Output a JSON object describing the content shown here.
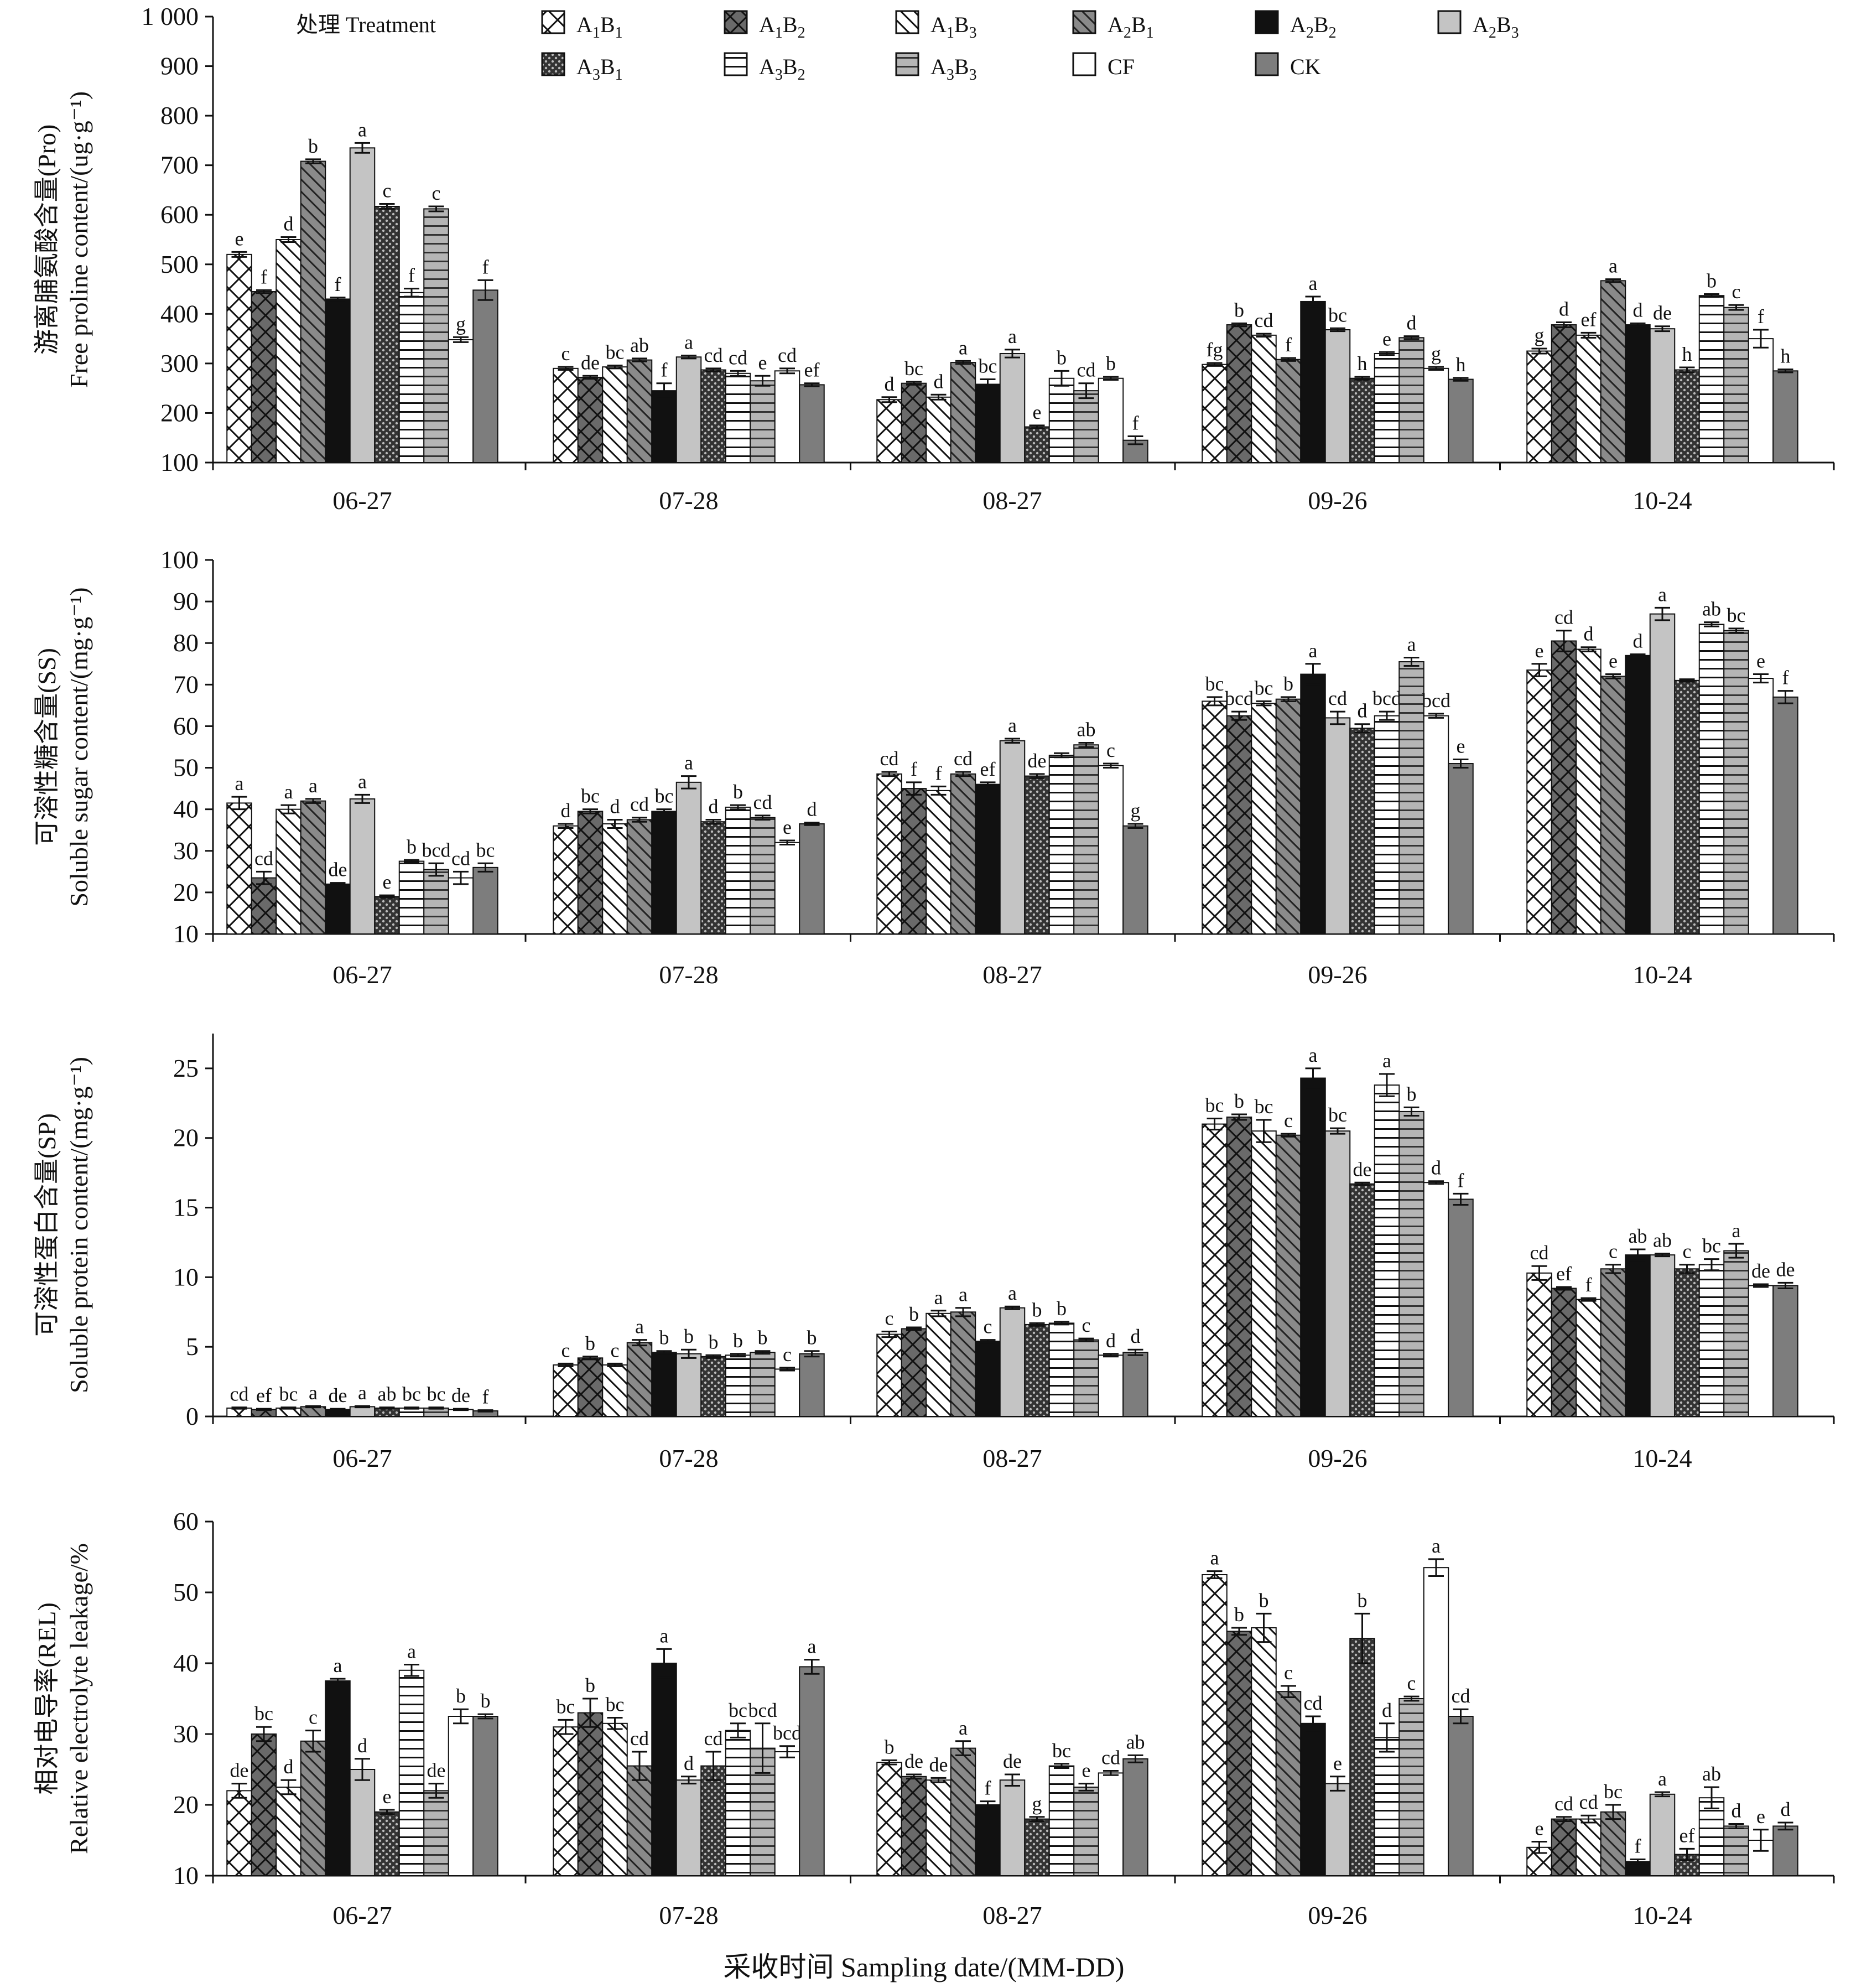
{
  "legend": {
    "title": "处理 Treatment",
    "items": [
      {
        "code": "A1B1",
        "base": "A",
        "sub1": "1",
        "mid": "B",
        "sub2": "1",
        "pattern": "crosshatch"
      },
      {
        "code": "A1B2",
        "base": "A",
        "sub1": "1",
        "mid": "B",
        "sub2": "2",
        "pattern": "dark-cross"
      },
      {
        "code": "A1B3",
        "base": "A",
        "sub1": "1",
        "mid": "B",
        "sub2": "3",
        "pattern": "diag-white"
      },
      {
        "code": "A2B1",
        "base": "A",
        "sub1": "2",
        "mid": "B",
        "sub2": "1",
        "pattern": "diag-gray"
      },
      {
        "code": "A2B2",
        "base": "A",
        "sub1": "2",
        "mid": "B",
        "sub2": "2",
        "pattern": "black"
      },
      {
        "code": "A2B3",
        "base": "A",
        "sub1": "2",
        "mid": "B",
        "sub2": "3",
        "pattern": "lightgray"
      },
      {
        "code": "A3B1",
        "base": "A",
        "sub1": "3",
        "mid": "B",
        "sub2": "1",
        "pattern": "dots"
      },
      {
        "code": "A3B2",
        "base": "A",
        "sub1": "3",
        "mid": "B",
        "sub2": "2",
        "pattern": "hlines-white"
      },
      {
        "code": "A3B3",
        "base": "A",
        "sub1": "3",
        "mid": "B",
        "sub2": "3",
        "pattern": "hlines-gray"
      },
      {
        "code": "CF",
        "base": "CF",
        "sub1": "",
        "mid": "",
        "sub2": "",
        "pattern": "white"
      },
      {
        "code": "CK",
        "base": "CK",
        "sub1": "",
        "mid": "",
        "sub2": "",
        "pattern": "darkgray"
      }
    ]
  },
  "xlabel": "采收时间 Sampling date/(MM-DD)",
  "chart_data": [
    {
      "type": "bar",
      "ylabel_cn": "游离脯氨酸含量(Pro)",
      "ylabel_en": "Free proline content/(ug·g⁻¹)",
      "categories": [
        "06-27",
        "07-28",
        "08-27",
        "09-26",
        "10-24"
      ],
      "ylim": [
        100,
        1000
      ],
      "yticks": [
        100,
        200,
        300,
        400,
        500,
        600,
        700,
        800,
        900,
        1000
      ],
      "ytick_labels": [
        "100",
        "200",
        "300",
        "400",
        "500",
        "600",
        "700",
        "800",
        "900",
        "1 000"
      ],
      "series_names": [
        "A1B1",
        "A1B2",
        "A1B3",
        "A2B1",
        "A2B2",
        "A2B3",
        "A3B1",
        "A3B2",
        "A3B3",
        "CF",
        "CK"
      ],
      "values": [
        [
          520,
          445,
          550,
          708,
          430,
          735,
          617,
          443,
          612,
          348,
          448
        ],
        [
          290,
          272,
          293,
          307,
          245,
          313,
          287,
          280,
          265,
          285,
          257
        ],
        [
          227,
          260,
          232,
          302,
          258,
          320,
          172,
          270,
          245,
          270,
          145
        ],
        [
          298,
          378,
          357,
          308,
          425,
          368,
          270,
          320,
          352,
          290,
          268
        ],
        [
          325,
          378,
          357,
          467,
          378,
          370,
          287,
          437,
          413,
          350,
          285
        ]
      ],
      "errors": [
        [
          5,
          3,
          5,
          4,
          3,
          10,
          5,
          8,
          5,
          5,
          20
        ],
        [
          3,
          3,
          3,
          3,
          15,
          3,
          3,
          5,
          10,
          5,
          3
        ],
        [
          5,
          3,
          5,
          3,
          10,
          8,
          3,
          15,
          15,
          3,
          8
        ],
        [
          3,
          3,
          3,
          3,
          10,
          3,
          3,
          3,
          3,
          3,
          3
        ],
        [
          5,
          5,
          5,
          3,
          3,
          5,
          5,
          3,
          5,
          18,
          3
        ]
      ],
      "letters": [
        [
          "e",
          "f",
          "d",
          "b",
          "f",
          "a",
          "c",
          "f",
          "c",
          "g",
          "f"
        ],
        [
          "c",
          "de",
          "bc",
          "ab",
          "f",
          "a",
          "cd",
          "cd",
          "e",
          "cd",
          "ef"
        ],
        [
          "d",
          "bc",
          "d",
          "a",
          "bc",
          "a",
          "e",
          "b",
          "cd",
          "b",
          "f"
        ],
        [
          "fg",
          "b",
          "cd",
          "f",
          "a",
          "bc",
          "h",
          "e",
          "d",
          "g",
          "h"
        ],
        [
          "g",
          "d",
          "ef",
          "a",
          "d",
          "de",
          "h",
          "b",
          "c",
          "f",
          "h"
        ]
      ]
    },
    {
      "type": "bar",
      "ylabel_cn": "可溶性糖含量(SS)",
      "ylabel_en": "Soluble sugar content/(mg·g⁻¹)",
      "categories": [
        "06-27",
        "07-28",
        "08-27",
        "09-26",
        "10-24"
      ],
      "ylim": [
        10,
        100
      ],
      "yticks": [
        10,
        20,
        30,
        40,
        50,
        60,
        70,
        80,
        90,
        100
      ],
      "ytick_labels": [
        "10",
        "20",
        "30",
        "40",
        "50",
        "60",
        "70",
        "80",
        "90",
        "100"
      ],
      "series_names": [
        "A1B1",
        "A1B2",
        "A1B3",
        "A2B1",
        "A2B2",
        "A2B3",
        "A3B1",
        "A3B2",
        "A3B3",
        "CF",
        "CK"
      ],
      "values": [
        [
          41.5,
          23.5,
          40,
          42,
          22,
          42.5,
          19,
          27.5,
          25.5,
          23.5,
          26
        ],
        [
          36,
          39.5,
          36.5,
          37.5,
          39.5,
          46.5,
          37,
          40.5,
          38,
          32,
          36.5
        ],
        [
          48.5,
          45,
          44.5,
          48.5,
          46,
          56.5,
          48,
          53,
          55.5,
          50.5,
          36
        ],
        [
          66,
          62.5,
          65.5,
          66.5,
          72.5,
          62,
          59.5,
          62.5,
          75.5,
          62.5,
          51
        ],
        [
          73.5,
          80.5,
          78.5,
          72,
          77,
          87,
          71,
          84.5,
          83,
          71.5,
          67
        ]
      ],
      "errors": [
        [
          1.5,
          1.5,
          1,
          0.5,
          0.3,
          1,
          0.3,
          0.3,
          1.5,
          1.5,
          1
        ],
        [
          0.5,
          0.5,
          1,
          0.5,
          0.5,
          1.5,
          0.5,
          0.5,
          0.5,
          0.5,
          0.3
        ],
        [
          0.5,
          1.5,
          1,
          0.5,
          0.5,
          0.5,
          0.5,
          0.5,
          0.5,
          0.5,
          0.5
        ],
        [
          1,
          1,
          0.5,
          0.5,
          2.5,
          1.5,
          1,
          1,
          1,
          0.5,
          1
        ],
        [
          1.5,
          2.5,
          0.5,
          0.5,
          0.3,
          1.5,
          0.3,
          0.5,
          0.5,
          1,
          1.5
        ]
      ],
      "letters": [
        [
          "a",
          "cd",
          "a",
          "a",
          "de",
          "a",
          "e",
          "b",
          "bcd",
          "cd",
          "bc"
        ],
        [
          "d",
          "bc",
          "d",
          "cd",
          "bc",
          "a",
          "d",
          "b",
          "cd",
          "e",
          "d"
        ],
        [
          "cd",
          "f",
          "f",
          "cd",
          "ef",
          "a",
          "de",
          "",
          "ab",
          "c",
          "g"
        ],
        [
          "bc",
          "bcd",
          "bc",
          "b",
          "a",
          "cd",
          "d",
          "bcd",
          "a",
          "bcd",
          "e"
        ],
        [
          "e",
          "cd",
          "d",
          "e",
          "d",
          "a",
          "",
          "ab",
          "bc",
          "e",
          "f"
        ]
      ]
    },
    {
      "type": "bar",
      "ylabel_cn": "可溶性蛋白含量(SP)",
      "ylabel_en": "Soluble protein content/(mg·g⁻¹)",
      "categories": [
        "06-27",
        "07-28",
        "08-27",
        "09-26",
        "10-24"
      ],
      "ylim": [
        0,
        27.5
      ],
      "yticks": [
        0,
        5,
        10,
        15,
        20,
        25
      ],
      "ytick_labels": [
        "0",
        "5",
        "10",
        "15",
        "20",
        "25"
      ],
      "series_names": [
        "A1B1",
        "A1B2",
        "A1B3",
        "A2B1",
        "A2B2",
        "A2B3",
        "A3B1",
        "A3B2",
        "A3B3",
        "CF",
        "CK"
      ],
      "values": [
        [
          0.6,
          0.5,
          0.6,
          0.7,
          0.5,
          0.7,
          0.6,
          0.6,
          0.6,
          0.5,
          0.4
        ],
        [
          3.7,
          4.2,
          3.7,
          5.3,
          4.6,
          4.5,
          4.3,
          4.4,
          4.6,
          3.4,
          4.5
        ],
        [
          5.9,
          6.3,
          7.4,
          7.5,
          5.4,
          7.8,
          6.6,
          6.7,
          5.5,
          4.4,
          4.6
        ],
        [
          21,
          21.5,
          20.5,
          20.2,
          24.3,
          20.5,
          16.7,
          23.8,
          21.9,
          16.8,
          15.6
        ],
        [
          10.3,
          9.2,
          8.4,
          10.6,
          11.6,
          11.6,
          10.6,
          10.9,
          11.9,
          9.4,
          9.4
        ]
      ],
      "errors": [
        [
          0.05,
          0.05,
          0.05,
          0.05,
          0.05,
          0.05,
          0.05,
          0.05,
          0.05,
          0.05,
          0.05
        ],
        [
          0.1,
          0.1,
          0.1,
          0.2,
          0.1,
          0.3,
          0.1,
          0.1,
          0.1,
          0.1,
          0.2
        ],
        [
          0.2,
          0.1,
          0.2,
          0.3,
          0.1,
          0.1,
          0.1,
          0.1,
          0.1,
          0.1,
          0.2
        ],
        [
          0.4,
          0.2,
          0.8,
          0.1,
          0.7,
          0.2,
          0.1,
          0.8,
          0.3,
          0.1,
          0.4
        ],
        [
          0.5,
          0.1,
          0.1,
          0.3,
          0.4,
          0.1,
          0.3,
          0.4,
          0.5,
          0.1,
          0.2
        ]
      ],
      "letters": [
        [
          "cd",
          "ef",
          "bc",
          "a",
          "de",
          "a",
          "ab",
          "bc",
          "bc",
          "de",
          "f"
        ],
        [
          "c",
          "b",
          "c",
          "a",
          "b",
          "b",
          "b",
          "b",
          "b",
          "c",
          "b"
        ],
        [
          "c",
          "b",
          "a",
          "a",
          "c",
          "a",
          "b",
          "b",
          "c",
          "d",
          "d"
        ],
        [
          "bc",
          "b",
          "bc",
          "c",
          "a",
          "bc",
          "de",
          "a",
          "b",
          "d",
          "f"
        ],
        [
          "cd",
          "ef",
          "f",
          "c",
          "ab",
          "ab",
          "c",
          "bc",
          "a",
          "de",
          "de"
        ]
      ]
    },
    {
      "type": "bar",
      "ylabel_cn": "相对电导率(REL)",
      "ylabel_en": "Relative electrolyte leakage/%",
      "categories": [
        "06-27",
        "07-28",
        "08-27",
        "09-26",
        "10-24"
      ],
      "ylim": [
        10,
        60
      ],
      "yticks": [
        10,
        20,
        30,
        40,
        50,
        60
      ],
      "ytick_labels": [
        "10",
        "20",
        "30",
        "40",
        "50",
        "60"
      ],
      "series_names": [
        "A1B1",
        "A1B2",
        "A1B3",
        "A2B1",
        "A2B2",
        "A2B3",
        "A3B1",
        "A3B2",
        "A3B3",
        "CF",
        "CK"
      ],
      "values": [
        [
          22,
          30,
          22.5,
          29,
          37.5,
          25,
          19,
          39,
          22,
          32.5,
          32.5
        ],
        [
          31,
          33,
          31.5,
          25.5,
          40,
          23.5,
          25.5,
          30.5,
          28,
          27.5,
          39.5
        ],
        [
          26,
          24,
          23.5,
          28,
          20,
          23.5,
          18,
          25.5,
          22.5,
          24.5,
          26.5
        ],
        [
          52.5,
          44.5,
          45,
          36,
          31.5,
          23,
          43.5,
          29.5,
          35,
          53.5,
          32.5
        ],
        [
          14,
          18,
          18,
          19,
          12,
          21.5,
          13,
          21,
          17,
          15,
          17
        ]
      ],
      "errors": [
        [
          1,
          1,
          1,
          1.5,
          0.3,
          1.5,
          0.3,
          0.8,
          1,
          1,
          0.3
        ],
        [
          1,
          2,
          0.8,
          2,
          2,
          0.5,
          2,
          1,
          3.5,
          0.8,
          1
        ],
        [
          0.3,
          0.3,
          0.3,
          1,
          0.5,
          0.8,
          0.3,
          0.3,
          0.5,
          0.3,
          0.5
        ],
        [
          0.5,
          0.5,
          2,
          0.8,
          1,
          1,
          3.5,
          2,
          0.3,
          1.2,
          1
        ],
        [
          0.8,
          0.3,
          0.5,
          1,
          0.3,
          0.3,
          0.8,
          1.5,
          0.3,
          1.5,
          0.5
        ]
      ],
      "letters": [
        [
          "de",
          "bc",
          "d",
          "c",
          "a",
          "d",
          "e",
          "a",
          "de",
          "b",
          "b"
        ],
        [
          "bc",
          "b",
          "bc",
          "cd",
          "a",
          "d",
          "cd",
          "bc",
          "bcd",
          "bcd",
          "a"
        ],
        [
          "b",
          "de",
          "de",
          "a",
          "f",
          "de",
          "g",
          "bc",
          "e",
          "cd",
          "ab"
        ],
        [
          "a",
          "b",
          "b",
          "c",
          "cd",
          "e",
          "b",
          "d",
          "c",
          "a",
          "cd"
        ],
        [
          "e",
          "cd",
          "cd",
          "bc",
          "f",
          "a",
          "ef",
          "ab",
          "d",
          "e",
          "d"
        ]
      ]
    }
  ]
}
